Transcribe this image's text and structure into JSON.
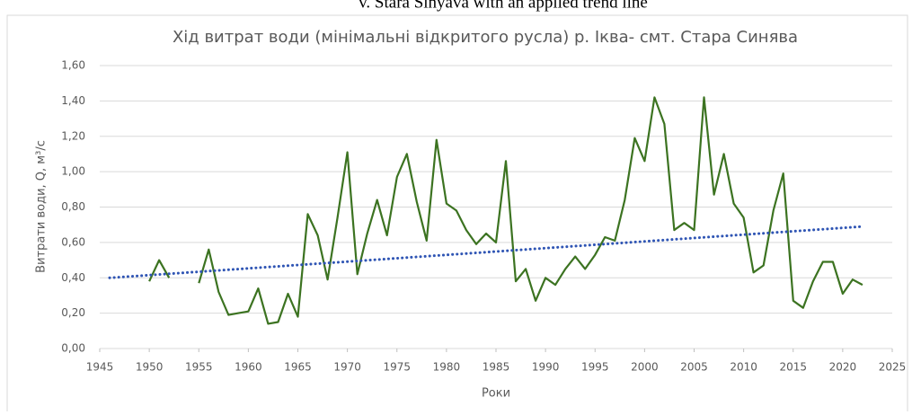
{
  "caption": "v. Stara Sinyava with an applied trend line",
  "chart_data": {
    "type": "line",
    "title": "Хід витрат води (мінімальні відкритого русла) р. Іква- смт. Стара Синява",
    "x_label": "Роки",
    "y_label": "Витрати води, Q, м³/с",
    "x": [
      1950,
      1951,
      1952,
      1953,
      1954,
      1955,
      1956,
      1957,
      1958,
      1959,
      1960,
      1961,
      1962,
      1963,
      1964,
      1965,
      1966,
      1967,
      1968,
      1969,
      1970,
      1971,
      1972,
      1973,
      1974,
      1975,
      1976,
      1977,
      1978,
      1979,
      1980,
      1981,
      1982,
      1983,
      1984,
      1985,
      1986,
      1987,
      1988,
      1989,
      1990,
      1991,
      1992,
      1993,
      1994,
      1995,
      1996,
      1997,
      1998,
      1999,
      2000,
      2001,
      2002,
      2003,
      2004,
      2005,
      2006,
      2007,
      2008,
      2009,
      2010,
      2011,
      2012,
      2013,
      2014,
      2015,
      2016,
      2017,
      2018,
      2019,
      2020,
      2021,
      2022
    ],
    "series": [
      {
        "color": "#3c7321",
        "values": [
          0.38,
          0.5,
          0.4,
          null,
          null,
          0.37,
          0.56,
          0.32,
          0.19,
          0.2,
          0.21,
          0.34,
          0.14,
          0.15,
          0.31,
          0.18,
          0.76,
          0.64,
          0.39,
          0.74,
          1.11,
          0.42,
          0.65,
          0.84,
          0.64,
          0.97,
          1.1,
          0.83,
          0.61,
          1.18,
          0.82,
          0.78,
          0.67,
          0.59,
          0.65,
          0.6,
          1.06,
          0.38,
          0.45,
          0.27,
          0.4,
          0.36,
          0.45,
          0.52,
          0.45,
          0.53,
          0.63,
          0.61,
          0.84,
          1.19,
          1.06,
          1.42,
          1.27,
          0.67,
          0.71,
          0.67,
          1.42,
          0.87,
          1.1,
          0.82,
          0.74,
          0.43,
          0.47,
          0.78,
          0.99,
          0.27,
          0.23,
          0.38,
          0.49,
          0.49,
          0.31,
          0.39,
          0.36
        ]
      }
    ],
    "trend": {
      "x": [
        1946,
        2022
      ],
      "values": [
        0.4,
        0.69
      ],
      "color": "#2f55b4"
    },
    "xlim": [
      1945,
      2025
    ],
    "xticks": [
      1945,
      1950,
      1955,
      1960,
      1965,
      1970,
      1975,
      1980,
      1985,
      1990,
      1995,
      2000,
      2005,
      2010,
      2015,
      2020,
      2025
    ],
    "ylim": [
      0,
      1.6
    ],
    "yticks": [
      {
        "value": 0,
        "label": "0,00"
      },
      {
        "value": 0.2,
        "label": "0,20"
      },
      {
        "value": 0.4,
        "label": "0,40"
      },
      {
        "value": 0.6,
        "label": "0,60"
      },
      {
        "value": 0.8,
        "label": "0,80"
      },
      {
        "value": 1.0,
        "label": "1,00"
      },
      {
        "value": 1.2,
        "label": "1,20"
      },
      {
        "value": 1.4,
        "label": "1,40"
      },
      {
        "value": 1.6,
        "label": "1,60"
      }
    ],
    "grid": true
  }
}
